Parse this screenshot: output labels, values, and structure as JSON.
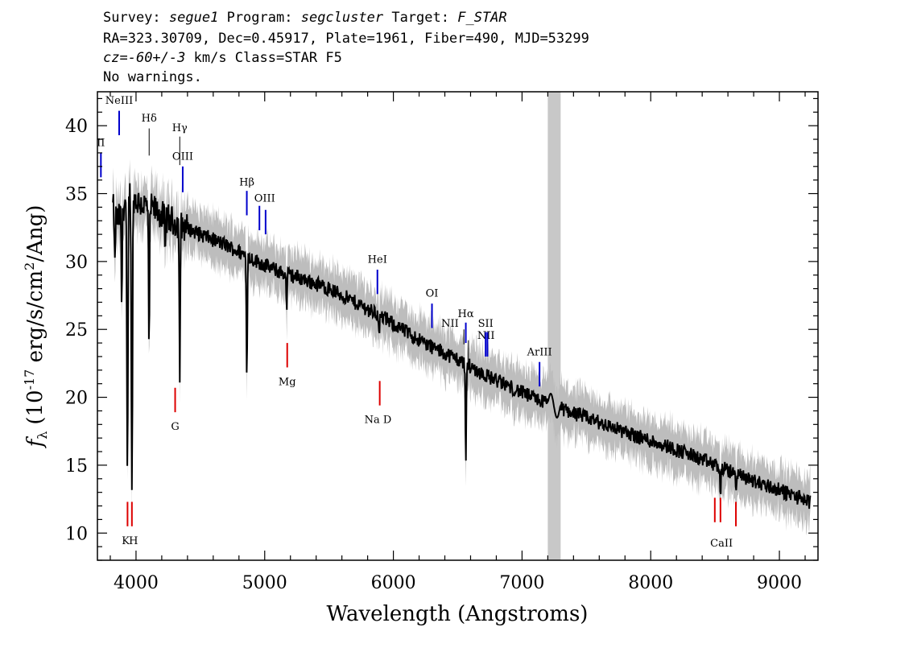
{
  "header": {
    "survey_label": "Survey:",
    "survey": "segue1",
    "program_label": "Program:",
    "program": "segcluster",
    "target_label": "Target:",
    "target": "F_STAR",
    "line2": "RA=323.30709, Dec=0.45917, Plate=1961, Fiber=490, MJD=53299",
    "cz_prefix": "cz=",
    "cz_value": "-60+/-3",
    "cz_suffix": " km/s Class=STAR F5",
    "line4": "No warnings."
  },
  "chart_data": {
    "type": "line",
    "xlabel": "Wavelength (Angstroms)",
    "ylabel_symbol": "f",
    "ylabel_sub": "λ",
    "ylabel_pre": "(10",
    "ylabel_exp": "-17",
    "ylabel_mid": " erg/s/cm",
    "ylabel_exp2": "2",
    "ylabel_post": "/Ang)",
    "xlim": [
      3700,
      9300
    ],
    "ylim": [
      8,
      42.5
    ],
    "x_ticks": [
      4000,
      5000,
      6000,
      7000,
      8000,
      9000
    ],
    "y_ticks": [
      10,
      15,
      20,
      25,
      30,
      35,
      40
    ],
    "x_minor_step": 200,
    "y_minor_step": 1,
    "masked_region": [
      7200,
      7300
    ],
    "colors": {
      "spectrum": "#000000",
      "error_band": "#bdbdbd",
      "mask": "#c8c8c8",
      "emission_line": "#0000cc",
      "absorption_line": "#dd0000",
      "sky_line": "#000000"
    },
    "spectrum_anchors": [
      [
        3820,
        34.0
      ],
      [
        3860,
        33.0
      ],
      [
        3900,
        34.0
      ],
      [
        3950,
        35.0
      ],
      [
        4000,
        34.5
      ],
      [
        4050,
        34.2
      ],
      [
        4150,
        33.8
      ],
      [
        4200,
        33.4
      ],
      [
        4300,
        32.9
      ],
      [
        4500,
        32.0
      ],
      [
        4700,
        31.2
      ],
      [
        4900,
        30.2
      ],
      [
        5100,
        29.3
      ],
      [
        5300,
        28.7
      ],
      [
        5500,
        28.0
      ],
      [
        5700,
        27.0
      ],
      [
        5900,
        26.0
      ],
      [
        6100,
        24.8
      ],
      [
        6300,
        23.7
      ],
      [
        6500,
        22.8
      ],
      [
        6700,
        21.7
      ],
      [
        6900,
        20.8
      ],
      [
        7100,
        19.9
      ],
      [
        7300,
        19.2
      ],
      [
        7500,
        18.5
      ],
      [
        7700,
        17.8
      ],
      [
        7900,
        17.1
      ],
      [
        8100,
        16.5
      ],
      [
        8300,
        15.8
      ],
      [
        8500,
        15.0
      ],
      [
        8700,
        14.2
      ],
      [
        8900,
        13.5
      ],
      [
        9100,
        12.8
      ],
      [
        9240,
        12.3
      ]
    ],
    "absorption_features": [
      [
        3835,
        29.5,
        5
      ],
      [
        3889,
        27.0,
        5
      ],
      [
        3933,
        13.5,
        6
      ],
      [
        3968,
        12.5,
        6
      ],
      [
        4101,
        23.0,
        5
      ],
      [
        4226,
        30.0,
        4
      ],
      [
        4340,
        21.5,
        5
      ],
      [
        4861,
        21.5,
        5
      ],
      [
        5170,
        26.5,
        5
      ],
      [
        5890,
        24.0,
        4
      ],
      [
        6563,
        15.0,
        5
      ],
      [
        8542,
        12.0,
        4
      ],
      [
        8662,
        13.2,
        4
      ]
    ],
    "emission_lines": [
      {
        "label": "II",
        "x": 3727,
        "y0": 36.2,
        "y1": 38.0,
        "lx": 3727,
        "ly": 38.5
      },
      {
        "label": "NeIII",
        "x": 3869,
        "y0": 39.3,
        "y1": 41.1,
        "lx": 3869,
        "ly": 41.6
      },
      {
        "label": "Hδ",
        "x": 4102,
        "y0": 37.8,
        "y1": 39.8,
        "lx": 4102,
        "ly": 40.3,
        "sky": true
      },
      {
        "label": "Hγ",
        "x": 4340,
        "y0": 37.1,
        "y1": 39.2,
        "lx": 4340,
        "ly": 39.6,
        "sky": true
      },
      {
        "label": "OIII",
        "x": 4363,
        "y0": 35.1,
        "y1": 37.0,
        "lx": 4363,
        "ly": 37.5
      },
      {
        "label": "Hβ",
        "x": 4861,
        "y0": 33.4,
        "y1": 35.2,
        "lx": 4861,
        "ly": 35.6
      },
      {
        "label": "OIII",
        "x": 4959,
        "y0": 32.3,
        "y1": 34.1,
        "lx": 5000,
        "ly": 34.4
      },
      {
        "label": "OIII",
        "x": 5007,
        "y0": 32.0,
        "y1": 33.8
      },
      {
        "label": "HeI",
        "x": 5876,
        "y0": 27.6,
        "y1": 29.4,
        "lx": 5876,
        "ly": 29.9
      },
      {
        "label": "OI",
        "x": 6300,
        "y0": 25.1,
        "y1": 26.9,
        "lx": 6300,
        "ly": 27.4
      },
      {
        "label": "NII",
        "x": 6548,
        "y0": 23.9,
        "y1": 25.0,
        "lx": 6440,
        "ly": 25.2,
        "sky": true
      },
      {
        "label": "Hα",
        "x": 6563,
        "y0": 24.0,
        "y1": 25.5,
        "lx": 6563,
        "ly": 25.9
      },
      {
        "label": "NII",
        "x": 6583,
        "y0": 22.1,
        "y1": 24.2,
        "lx": 6720,
        "ly": 24.3,
        "sky": true
      },
      {
        "label": "SII",
        "x": 6717,
        "y0": 23.0,
        "y1": 24.8,
        "lx": 6717,
        "ly": 25.2
      },
      {
        "label": "SII",
        "x": 6731,
        "y0": 23.0,
        "y1": 24.8
      },
      {
        "label": "ArIII",
        "x": 7136,
        "y0": 20.8,
        "y1": 22.6,
        "lx": 7136,
        "ly": 23.1
      }
    ],
    "absorption_lines": [
      {
        "label": "G",
        "x": 4304,
        "y0": 18.9,
        "y1": 20.7,
        "lx": 4304,
        "ly": 17.6
      },
      {
        "label": "Mg",
        "x": 5175,
        "y0": 22.2,
        "y1": 24.0,
        "lx": 5175,
        "ly": 20.9
      },
      {
        "label": "Na D",
        "x": 5894,
        "y0": 19.4,
        "y1": 21.2,
        "lx": 5880,
        "ly": 18.1
      },
      {
        "label": "K",
        "x": 3934,
        "y0": 10.5,
        "y1": 12.3,
        "lx": 3920,
        "ly": 9.2
      },
      {
        "label": "H",
        "x": 3968,
        "y0": 10.5,
        "y1": 12.3,
        "lx": 3980,
        "ly": 9.2
      },
      {
        "label": "CaII",
        "x": 8498,
        "y0": 10.8,
        "y1": 12.6,
        "lx": 8550,
        "ly": 9.0
      },
      {
        "label": "",
        "x": 8542,
        "y0": 10.8,
        "y1": 12.6
      },
      {
        "label": "",
        "x": 8662,
        "y0": 10.5,
        "y1": 12.3
      }
    ]
  }
}
